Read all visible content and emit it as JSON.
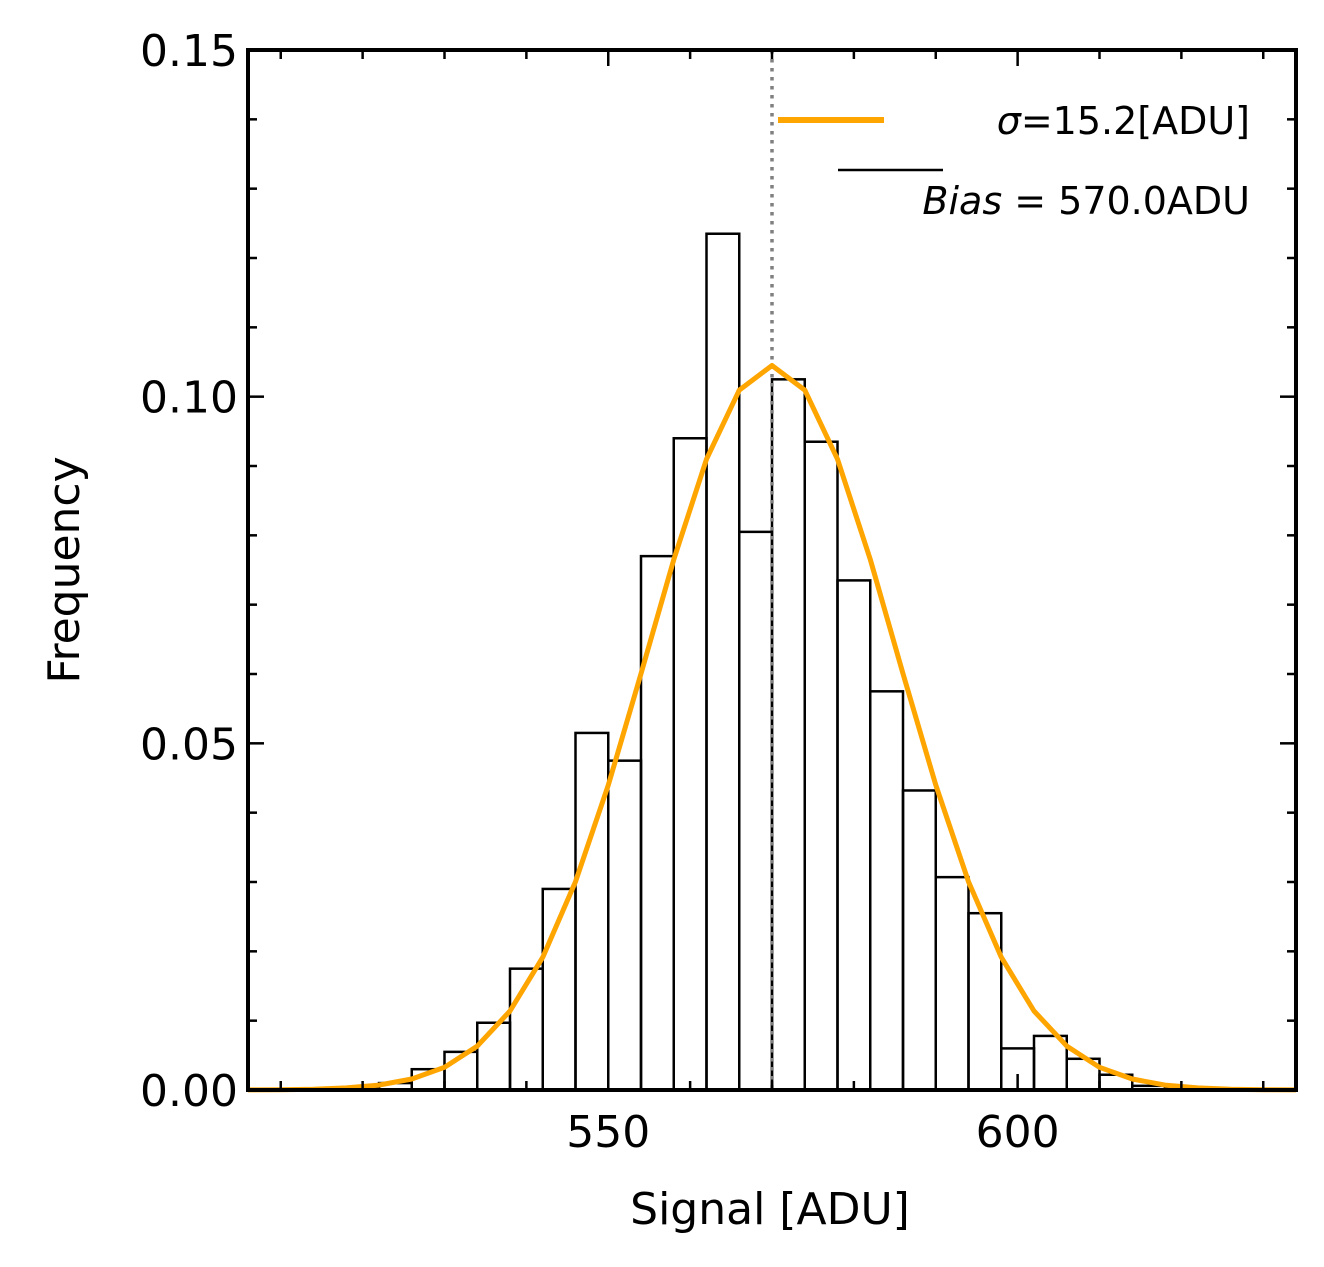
{
  "chart_data": {
    "type": "histogram",
    "xlabel": "Signal [ADU]",
    "ylabel": "Frequency",
    "xlim": [
      506,
      634
    ],
    "ylim": [
      0,
      0.15
    ],
    "x_major_ticks": [
      550,
      600
    ],
    "x_tick_labels": [
      "550",
      "600"
    ],
    "x_minor_step": 10,
    "y_major_ticks": [
      0,
      0.05,
      0.1,
      0.15
    ],
    "y_tick_labels": [
      "0.00",
      "0.05",
      "0.10",
      "0.15"
    ],
    "y_minor_step": 0.01,
    "histogram": {
      "bin_edges": [
        506,
        510,
        514,
        518,
        522,
        526,
        530,
        534,
        538,
        542,
        546,
        550,
        554,
        558,
        562,
        566,
        570,
        574,
        578,
        582,
        586,
        590,
        594,
        598,
        602,
        606,
        610,
        614,
        618,
        622,
        626,
        630,
        634
      ],
      "frequencies": [
        0.0,
        0.0,
        0.0,
        0.0002,
        0.001,
        0.003,
        0.0055,
        0.0097,
        0.0175,
        0.029,
        0.0515,
        0.0475,
        0.077,
        0.094,
        0.1235,
        0.0805,
        0.1025,
        0.0935,
        0.0735,
        0.0575,
        0.0432,
        0.0307,
        0.0255,
        0.006,
        0.0078,
        0.0045,
        0.0022,
        0.0006,
        0.0002,
        0.0,
        0.0,
        0.0
      ],
      "color": "#000000"
    },
    "fit": {
      "type": "gaussian",
      "mean": 570.0,
      "sigma": 15.2,
      "peak": 0.1045,
      "color": "#FFA500",
      "legend_label": "σ=15.2[ADU]"
    },
    "vline": {
      "x": 570.0,
      "color": "#808080",
      "style": "dotted"
    },
    "legend": {
      "placement": "top-right",
      "fit_label_symbol": "σ",
      "fit_label_rest": "=15.2[ADU]",
      "bias_symbol": "Bias",
      "bias_rest": " = 570.0ADU"
    }
  }
}
